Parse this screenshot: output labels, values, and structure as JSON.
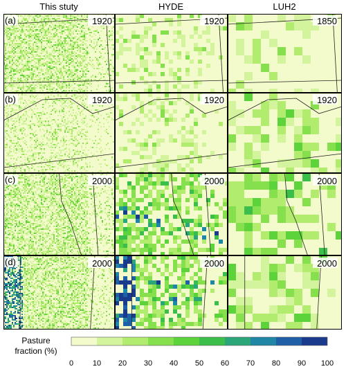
{
  "column_headers": [
    "This stuty",
    "HYDE",
    "LUH2"
  ],
  "row_labels": [
    "(a)",
    "(b)",
    "(c)",
    "(d)"
  ],
  "panel_years": [
    [
      "1920",
      "1920",
      "1850"
    ],
    [
      "1920",
      "1920",
      "1920"
    ],
    [
      "2000",
      "2000",
      "2000"
    ],
    [
      "2000",
      "2000",
      "2000"
    ]
  ],
  "colorbar": {
    "label_line1": "Pasture",
    "label_line2": "fraction (%)",
    "ticks": [
      "0",
      "10",
      "20",
      "30",
      "40",
      "50",
      "60",
      "70",
      "80",
      "90",
      "100"
    ],
    "colors": [
      "#f3fbcc",
      "#d3f49c",
      "#b2ec6e",
      "#86e04e",
      "#5cd33a",
      "#3cbf4a",
      "#2aa678",
      "#1f86a6",
      "#1e5fa6",
      "#1a3a8c"
    ]
  },
  "chart_data": {
    "type": "heatmap",
    "title": "",
    "variable": "Pasture fraction (%)",
    "range": [
      0,
      100
    ],
    "datasets": [
      "This stuty",
      "HYDE",
      "LUH2"
    ],
    "regions": [
      "(a)",
      "(b)",
      "(c)",
      "(d)"
    ],
    "years": [
      [
        "1920",
        "1920",
        "1850"
      ],
      [
        "1920",
        "1920",
        "1920"
      ],
      [
        "2000",
        "2000",
        "2000"
      ],
      [
        "2000",
        "2000",
        "2000"
      ]
    ],
    "dominant_class_percent": [
      [
        20,
        10,
        10
      ],
      [
        10,
        10,
        20
      ],
      [
        20,
        30,
        30
      ],
      [
        20,
        30,
        20
      ]
    ]
  }
}
